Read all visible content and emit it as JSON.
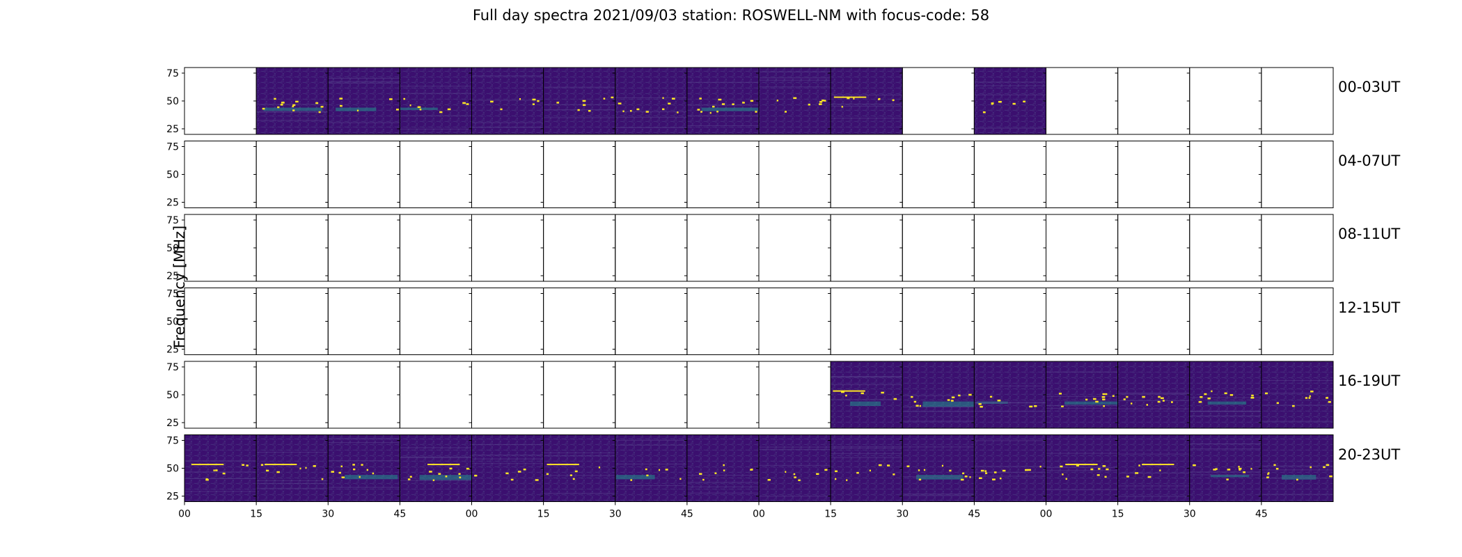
{
  "chart_data": {
    "type": "heatmap",
    "title": "Full day spectra 2021/09/03 station: ROSWELL-NM with focus-code: 58",
    "ylabel": "Frequency [MHz]",
    "xlabel": "",
    "y_ticks": [
      "75",
      "50",
      "25"
    ],
    "y_range": [
      20,
      80
    ],
    "x_ticks": [
      "00",
      "15",
      "30",
      "45",
      "00",
      "15",
      "30",
      "45",
      "00",
      "15",
      "30",
      "45",
      "00",
      "15",
      "30",
      "45"
    ],
    "colormap": "viridis",
    "panels_per_row": 16,
    "rows": [
      {
        "label": "00-03UT",
        "filled": [
          false,
          true,
          true,
          true,
          true,
          true,
          true,
          true,
          true,
          true,
          false,
          true,
          false,
          false,
          false,
          false
        ]
      },
      {
        "label": "04-07UT",
        "filled": [
          false,
          false,
          false,
          false,
          false,
          false,
          false,
          false,
          false,
          false,
          false,
          false,
          false,
          false,
          false,
          false
        ]
      },
      {
        "label": "08-11UT",
        "filled": [
          false,
          false,
          false,
          false,
          false,
          false,
          false,
          false,
          false,
          false,
          false,
          false,
          false,
          false,
          false,
          false
        ]
      },
      {
        "label": "12-15UT",
        "filled": [
          false,
          false,
          false,
          false,
          false,
          false,
          false,
          false,
          false,
          false,
          false,
          false,
          false,
          false,
          false,
          false
        ]
      },
      {
        "label": "16-19UT",
        "filled": [
          false,
          false,
          false,
          false,
          false,
          false,
          false,
          false,
          false,
          true,
          true,
          true,
          true,
          true,
          true,
          true
        ]
      },
      {
        "label": "20-23UT",
        "filled": [
          true,
          true,
          true,
          true,
          true,
          true,
          true,
          true,
          true,
          true,
          true,
          true,
          true,
          true,
          true,
          true
        ]
      }
    ],
    "colors": {
      "background": "#3b0f6f",
      "noise": "#46317e",
      "band": "#21918c",
      "spike": "#fde725",
      "axis": "#000000"
    }
  }
}
